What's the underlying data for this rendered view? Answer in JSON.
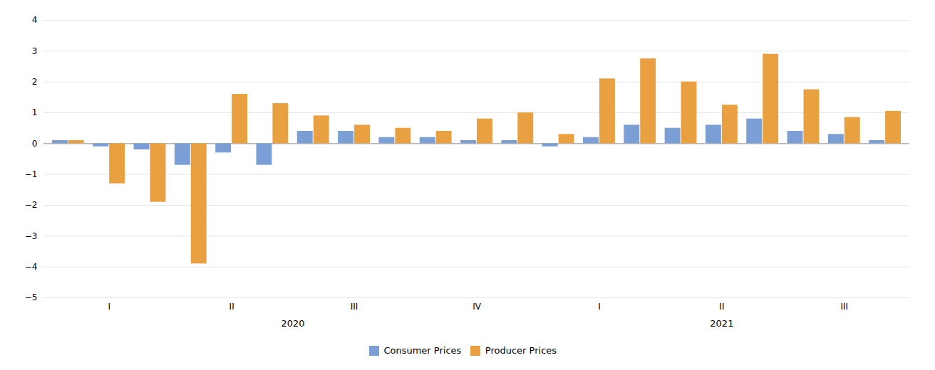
{
  "chart_data": {
    "type": "bar",
    "categories": [
      null,
      "I",
      null,
      null,
      "II",
      null,
      null,
      "III",
      null,
      null,
      "IV",
      null,
      null,
      "I",
      null,
      null,
      "II",
      null,
      null,
      "III",
      null
    ],
    "groups": [
      "2020",
      "2020",
      "2020",
      "2020",
      "2020",
      "2020",
      "2020",
      "2020",
      "2020",
      "2020",
      "2020",
      "2020",
      "2021",
      "2021",
      "2021",
      "2021",
      "2021",
      "2021",
      "2021",
      "2021",
      "2021"
    ],
    "series": [
      {
        "name": "Consumer Prices",
        "color": "#7B9FD4",
        "values": [
          0.1,
          -0.1,
          -0.2,
          -0.7,
          -0.3,
          -0.7,
          0.4,
          0.4,
          0.2,
          0.2,
          0.1,
          0.1,
          -0.1,
          0.2,
          0.6,
          0.5,
          0.6,
          0.8,
          0.4,
          0.3,
          0.1
        ]
      },
      {
        "name": "Producer Prices",
        "color": "#E8A040",
        "values": [
          0.1,
          -1.3,
          -1.9,
          -3.9,
          1.6,
          1.3,
          0.9,
          0.6,
          0.5,
          0.4,
          0.8,
          1.0,
          0.3,
          2.1,
          2.75,
          2.0,
          1.25,
          2.9,
          1.75,
          0.85,
          1.05
        ]
      }
    ],
    "ylim": [
      -5,
      4
    ],
    "yticks": [
      -5,
      -4,
      -3,
      -2,
      -1,
      0,
      1,
      2,
      3,
      4
    ],
    "grid": true,
    "legend": "bottom"
  }
}
